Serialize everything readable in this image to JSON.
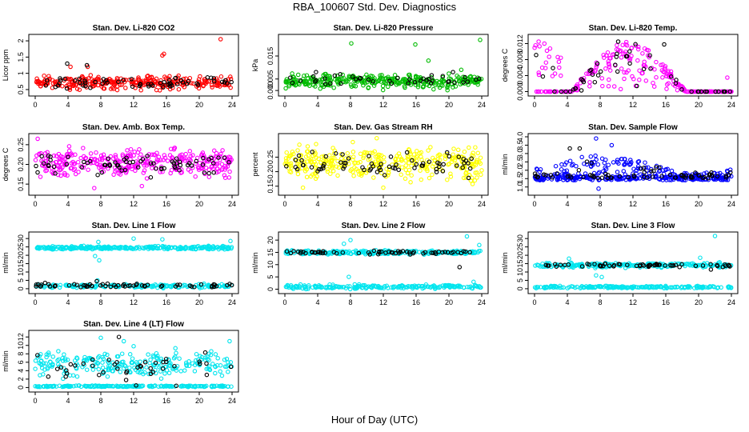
{
  "page": {
    "title": "RBA_100607  Std. Dev. Diagnostics",
    "x_title": "Hour of Day (UTC)"
  },
  "colors": {
    "black": "#000000",
    "red": "#ff0000",
    "green": "#00bb00",
    "magenta": "#ff00ff",
    "yellow": "#ffff00",
    "blue": "#0000ff",
    "cyan": "#00e5ee"
  },
  "chart_data": [
    {
      "type": "scatter",
      "title": "Stan. Dev. Li-820 CO2",
      "ylabel": "Licor ppm",
      "xlim": [
        0,
        24
      ],
      "ylim": [
        0.4,
        2.1
      ],
      "xticks": [
        0,
        4,
        8,
        12,
        16,
        20,
        24
      ],
      "yticks": [
        0.5,
        1.0,
        1.5,
        2.0
      ],
      "ytick_labels": [
        "0.5",
        "1",
        "1.5",
        "2"
      ],
      "series": [
        {
          "color": "red",
          "pattern": "band",
          "base": 0.72,
          "spread": 0.15,
          "n": 300,
          "points": [
            [
              15.5,
              1.55
            ],
            [
              15.7,
              1.6
            ],
            [
              22.6,
              2.05
            ],
            [
              4.3,
              1.2
            ],
            [
              6.4,
              1.2
            ]
          ]
        },
        {
          "color": "black",
          "pattern": "band",
          "base": 0.7,
          "spread": 0.12,
          "n": 60,
          "points": [
            [
              3.9,
              1.3
            ],
            [
              6.3,
              1.25
            ]
          ]
        }
      ]
    },
    {
      "type": "scatter",
      "title": "Stan. Dev. Li-820 Pressure",
      "ylabel": "kPa",
      "xlim": [
        0,
        24
      ],
      "ylim": [
        -0.001,
        0.023
      ],
      "xticks": [
        0,
        4,
        8,
        12,
        16,
        20,
        24
      ],
      "yticks": [
        0.0,
        0.005,
        0.015
      ],
      "ytick_labels": [
        "0.000",
        "0.005",
        "0.015"
      ],
      "series": [
        {
          "color": "green",
          "pattern": "band",
          "base": 0.004,
          "spread": 0.0022,
          "n": 320,
          "points": [
            [
              8.1,
              0.0205
            ],
            [
              15.9,
              0.02
            ],
            [
              23.8,
              0.022
            ],
            [
              17.5,
              0.013
            ],
            [
              21.5,
              0.009
            ]
          ]
        },
        {
          "color": "black",
          "pattern": "band",
          "base": 0.0045,
          "spread": 0.0015,
          "n": 40,
          "points": [
            [
              3.8,
              0.008
            ],
            [
              20.5,
              0.008
            ]
          ]
        }
      ]
    },
    {
      "type": "scatter",
      "title": "Stan. Dev. Li-820 Temp.",
      "ylabel": "degrees C",
      "xlim": [
        0,
        24
      ],
      "ylim": [
        -0.0003,
        0.0135
      ],
      "xticks": [
        0,
        4,
        8,
        12,
        16,
        20,
        24
      ],
      "yticks": [
        0.0,
        0.004,
        0.008,
        0.012
      ],
      "ytick_labels": [
        "0.000",
        "0.004",
        "0.008",
        "0.012"
      ],
      "series": [
        {
          "color": "magenta",
          "pattern": "hump",
          "base": 0.0,
          "spread": 0.0125,
          "n": 260,
          "points": [
            [
              0.5,
              0.0125
            ],
            [
              1.2,
              0.012
            ],
            [
              2.5,
              0.0045
            ],
            [
              3.0,
              0.006
            ],
            [
              23.5,
              0.0035
            ]
          ]
        },
        {
          "color": "black",
          "pattern": "hump",
          "base": 0.0,
          "spread": 0.0125,
          "n": 50,
          "points": [
            [
              10.2,
              0.0125
            ],
            [
              15.8,
              0.0118
            ]
          ]
        }
      ]
    },
    {
      "type": "scatter",
      "title": "Stan. Dev. Amb. Box Temp.",
      "ylabel": "degrees C",
      "xlim": [
        0,
        24
      ],
      "ylim": [
        0.13,
        0.27
      ],
      "xticks": [
        0,
        4,
        8,
        12,
        16,
        20,
        24
      ],
      "yticks": [
        0.15,
        0.2,
        0.25
      ],
      "ytick_labels": [
        "0.15",
        "0.20",
        "0.25"
      ],
      "series": [
        {
          "color": "magenta",
          "pattern": "band",
          "base": 0.205,
          "spread": 0.025,
          "n": 330,
          "points": [
            [
              0.3,
              0.265
            ],
            [
              7.2,
              0.14
            ],
            [
              13.0,
              0.145
            ]
          ]
        },
        {
          "color": "black",
          "pattern": "band",
          "base": 0.2,
          "spread": 0.02,
          "n": 70,
          "points": []
        }
      ]
    },
    {
      "type": "scatter",
      "title": "Stan. Dev. Gas Stream RH",
      "ylabel": "percent",
      "xlim": [
        0,
        24
      ],
      "ylim": [
        0.13,
        0.32
      ],
      "xticks": [
        0,
        4,
        8,
        12,
        16,
        20,
        24
      ],
      "yticks": [
        0.15,
        0.2,
        0.25
      ],
      "ytick_labels": [
        "0.15",
        "0.20",
        "0.25"
      ],
      "series": [
        {
          "color": "yellow",
          "pattern": "band",
          "base": 0.23,
          "spread": 0.04,
          "n": 340,
          "points": [
            [
              11.2,
              0.315
            ],
            [
              2.2,
              0.145
            ],
            [
              12.0,
              0.145
            ]
          ]
        },
        {
          "color": "black",
          "pattern": "band",
          "base": 0.225,
          "spread": 0.03,
          "n": 70,
          "points": []
        }
      ]
    },
    {
      "type": "scatter",
      "title": "Stan. Dev. Sample Flow",
      "ylabel": "ml/min",
      "xlim": [
        0,
        24
      ],
      "ylim": [
        0.7,
        4.0
      ],
      "xticks": [
        0,
        4,
        8,
        12,
        16,
        20,
        24
      ],
      "yticks": [
        1.0,
        1.5,
        2.0,
        2.5,
        3.0,
        3.5,
        4.0
      ],
      "ytick_labels": [
        "1.0",
        "1.5",
        "2.0",
        "2.5",
        "3.0",
        "3.5",
        "4.0"
      ],
      "series": [
        {
          "color": "blue",
          "pattern": "flow",
          "base": 1.4,
          "spread": 1.1,
          "n": 360,
          "points": [
            [
              7.5,
              3.9
            ],
            [
              9.4,
              3.5
            ],
            [
              7.8,
              0.9
            ]
          ]
        },
        {
          "color": "black",
          "pattern": "flow",
          "base": 1.5,
          "spread": 0.9,
          "n": 70,
          "points": [
            [
              4.3,
              3.3
            ],
            [
              5.5,
              3.3
            ]
          ]
        }
      ]
    },
    {
      "type": "scatter",
      "title": "Stan. Dev. Line 1 Flow",
      "ylabel": "ml/min",
      "xlim": [
        0,
        24
      ],
      "ylim": [
        -1,
        32
      ],
      "xticks": [
        0,
        4,
        8,
        12,
        16,
        20,
        24
      ],
      "yticks": [
        0,
        5,
        10,
        15,
        20,
        25,
        30
      ],
      "ytick_labels": [
        "0",
        "5",
        "10",
        "15",
        "20",
        "25",
        "30"
      ],
      "series": [
        {
          "color": "cyan",
          "pattern": "band",
          "base": 24.5,
          "spread": 0.7,
          "n": 260,
          "points": [
            [
              7.3,
              19.5
            ],
            [
              7.8,
              17.0
            ],
            [
              7.7,
              28.0
            ],
            [
              12.0,
              30.0
            ],
            [
              15.5,
              29.5
            ],
            [
              23.8,
              28.5
            ]
          ]
        },
        {
          "color": "cyan",
          "pattern": "band",
          "base": 1.6,
          "spread": 0.8,
          "n": 180,
          "points": [
            [
              7.6,
              5.0
            ]
          ]
        },
        {
          "color": "black",
          "pattern": "band",
          "base": 1.8,
          "spread": 0.8,
          "n": 60,
          "points": [
            [
              1.2,
              3.5
            ],
            [
              7.5,
              4.5
            ]
          ]
        }
      ]
    },
    {
      "type": "scatter",
      "title": "Stan. Dev. Line 2 Flow",
      "ylabel": "ml/min",
      "xlim": [
        0,
        24
      ],
      "ylim": [
        -0.5,
        22
      ],
      "xticks": [
        0,
        4,
        8,
        12,
        16,
        20,
        24
      ],
      "yticks": [
        0,
        5,
        10,
        15,
        20
      ],
      "ytick_labels": [
        "0",
        "5",
        "10",
        "15",
        "20"
      ],
      "series": [
        {
          "color": "cyan",
          "pattern": "band",
          "base": 15.0,
          "spread": 0.6,
          "n": 260,
          "points": [
            [
              8.0,
              20.0
            ],
            [
              7.2,
              18.5
            ],
            [
              22.2,
              21.5
            ],
            [
              23.7,
              18.0
            ]
          ]
        },
        {
          "color": "cyan",
          "pattern": "band",
          "base": 1.0,
          "spread": 0.6,
          "n": 200,
          "points": [
            [
              7.8,
              5.0
            ],
            [
              23.0,
              3.0
            ]
          ]
        },
        {
          "color": "black",
          "pattern": "band",
          "base": 15.0,
          "spread": 0.5,
          "n": 60,
          "points": [
            [
              21.3,
              9.0
            ]
          ]
        }
      ]
    },
    {
      "type": "scatter",
      "title": "Stan. Dev. Line 3 Flow",
      "ylabel": "ml/min",
      "xlim": [
        0,
        24
      ],
      "ylim": [
        -1,
        32
      ],
      "xticks": [
        0,
        4,
        8,
        12,
        16,
        20,
        24
      ],
      "yticks": [
        0,
        5,
        10,
        15,
        20,
        25,
        30
      ],
      "ytick_labels": [
        "0",
        "5",
        "10",
        "15",
        "20",
        "25",
        "30"
      ],
      "series": [
        {
          "color": "cyan",
          "pattern": "band",
          "base": 14.0,
          "spread": 1.0,
          "n": 240,
          "points": [
            [
              22.0,
              31.5
            ],
            [
              7.5,
              8.0
            ],
            [
              8.2,
              7.0
            ],
            [
              4.2,
              18.0
            ],
            [
              20.2,
              18.5
            ]
          ]
        },
        {
          "color": "cyan",
          "pattern": "band",
          "base": 1.0,
          "spread": 0.5,
          "n": 200,
          "points": []
        },
        {
          "color": "black",
          "pattern": "band",
          "base": 14.0,
          "spread": 0.7,
          "n": 60,
          "points": [
            [
              21.5,
              11.5
            ]
          ]
        }
      ]
    },
    {
      "type": "scatter",
      "title": "Stan. Dev. Line 4 (LT) Flow",
      "ylabel": "ml/min",
      "xlim": [
        0,
        24
      ],
      "ylim": [
        -0.3,
        12.8
      ],
      "xticks": [
        0,
        4,
        8,
        12,
        16,
        20,
        24
      ],
      "yticks": [
        0,
        2,
        4,
        6,
        8,
        10,
        12
      ],
      "ytick_labels": [
        "0",
        "2",
        "4",
        "6",
        "8",
        "10",
        "12"
      ],
      "series": [
        {
          "color": "cyan",
          "pattern": "band",
          "base": 5.5,
          "spread": 2.2,
          "n": 240,
          "points": [
            [
              10.8,
              11.0
            ],
            [
              12.0,
              9.8
            ],
            [
              23.7,
              11.0
            ],
            [
              8.0,
              11.8
            ]
          ]
        },
        {
          "color": "cyan",
          "pattern": "band",
          "base": 0.3,
          "spread": 0.12,
          "n": 200,
          "points": []
        },
        {
          "color": "black",
          "pattern": "band",
          "base": 5.0,
          "spread": 2.0,
          "n": 40,
          "points": [
            [
              10.2,
              12.0
            ],
            [
              12.3,
              0.5
            ],
            [
              17.2,
              0.4
            ]
          ]
        }
      ]
    }
  ]
}
